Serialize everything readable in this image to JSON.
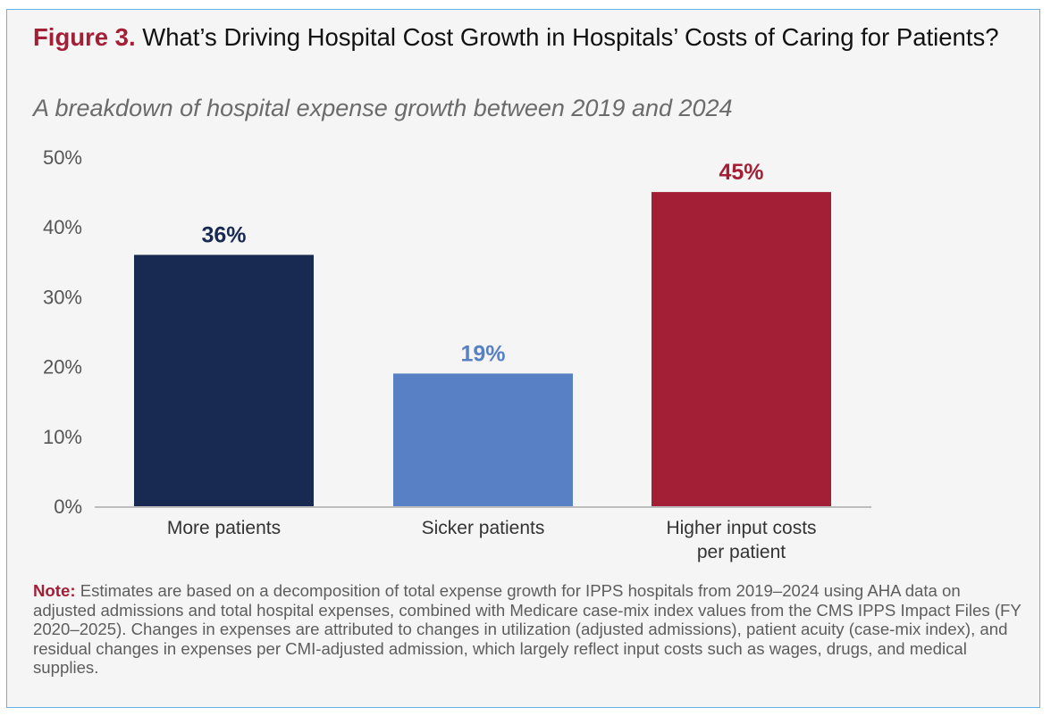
{
  "figure_label": "Figure 3.",
  "title": "What’s Driving Hospital Cost Growth in Hospitals’ Costs of Caring for Patients?",
  "subtitle": "A breakdown of hospital expense growth between 2019 and 2024",
  "note_label": "Note:",
  "note_text": "Estimates are based on a decomposition of total expense growth for IPPS hospitals from 2019–2024 using AHA data on adjusted admissions and total hospital expenses, combined with Medicare case-mix index values from the CMS IPPS Impact Files (FY 2020–2025). Changes in expenses are attributed to changes in utilization (adjusted admissions), patient acuity (case-mix index), and residual changes in expenses per CMI-adjusted admission, which largely reflect input costs such as wages, drugs, and medical supplies.",
  "chart_data": {
    "type": "bar",
    "categories": [
      [
        "More patients"
      ],
      [
        "Sicker patients"
      ],
      [
        "Higher input costs",
        "per patient"
      ]
    ],
    "values": [
      36,
      19,
      45
    ],
    "data_labels": [
      "36%",
      "19%",
      "45%"
    ],
    "colors": [
      "#192a52",
      "#5880c4",
      "#a31f36"
    ],
    "ylim": [
      0,
      50
    ],
    "yticks": [
      0,
      10,
      20,
      30,
      40,
      50
    ],
    "ytick_labels": [
      "0%",
      "10%",
      "20%",
      "30%",
      "40%",
      "50%"
    ],
    "grid": false,
    "legend": "none"
  }
}
